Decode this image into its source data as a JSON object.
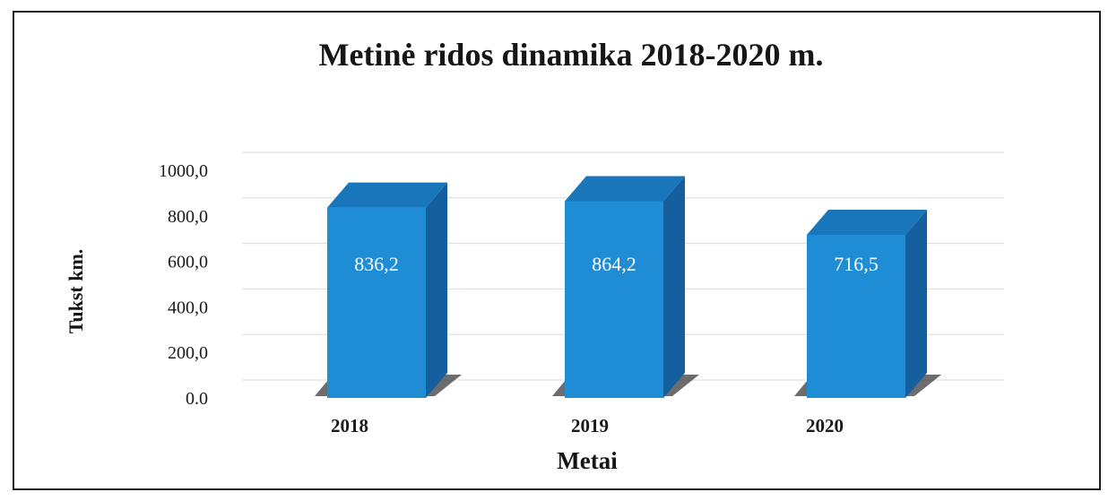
{
  "chart_data": {
    "type": "bar",
    "title": "Metinė ridos dinamika 2018-2020 m.",
    "xlabel": "Metai",
    "ylabel": "Tukst km.",
    "categories": [
      "2018",
      "2019",
      "2020"
    ],
    "values": [
      836.2,
      864.2,
      716.5
    ],
    "data_labels": [
      "836,2",
      "864,2",
      "716,5"
    ],
    "y_tick_labels": [
      "0.0",
      "200,0",
      "400,0",
      "600,0",
      "800,0",
      "1000,0"
    ],
    "y_ticks": [
      0,
      200,
      400,
      600,
      800,
      1000
    ],
    "ylim": [
      0,
      1000
    ],
    "grid": true,
    "legend": "none",
    "style": "3d-column",
    "colors": {
      "front": "#1f8dd6",
      "side": "#155f9e",
      "top": "#1a76bb",
      "shadow": "#3c3c3c",
      "grid": "#d9d9d9",
      "frame": "#1f1f1f"
    }
  }
}
